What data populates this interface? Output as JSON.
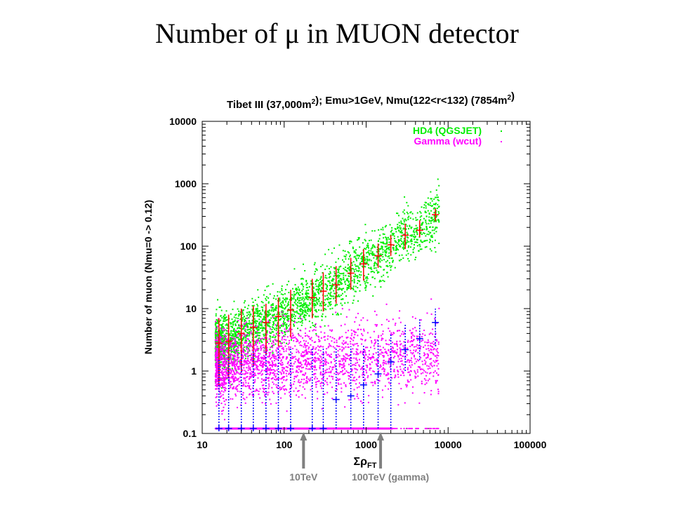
{
  "slide": {
    "title": "Number of μ in MUON detector"
  },
  "chart_data": {
    "type": "scatter",
    "title": "Tibet III (37,000m²); Emu>1GeV, Nmu(122<r<132) (7854m²)",
    "xlabel": "ΣρFT",
    "ylabel": "Number of muon (Nmu=0 -> 0.12)",
    "xscale": "log",
    "yscale": "log",
    "xlim": [
      10,
      100000
    ],
    "ylim": [
      0.1,
      10000
    ],
    "x_ticks": [
      10,
      100,
      1000,
      10000,
      100000
    ],
    "x_tick_labels": [
      "10",
      "100",
      "1000",
      "10000",
      "100000"
    ],
    "y_ticks": [
      0.1,
      1,
      10,
      100,
      1000,
      10000
    ],
    "y_tick_labels": [
      "0.1",
      "1",
      "10",
      "100",
      "1000",
      "10000"
    ],
    "legend_position": "top-right",
    "series": [
      {
        "name": "HD4 (QGSJET)",
        "color": "#00ee00",
        "marker": "dot"
      },
      {
        "name": "Gamma (wcut)",
        "color": "#ff00ff",
        "marker": "dot"
      }
    ],
    "hd4_profile": [
      {
        "x": 16,
        "y": 2.8,
        "ylo": 0.6,
        "yhi": 7
      },
      {
        "x": 21,
        "y": 3.0,
        "ylo": 0.8,
        "yhi": 8
      },
      {
        "x": 30,
        "y": 4.0,
        "ylo": 1.0,
        "yhi": 10
      },
      {
        "x": 42,
        "y": 5.0,
        "ylo": 1.2,
        "yhi": 11
      },
      {
        "x": 60,
        "y": 6.0,
        "ylo": 1.8,
        "yhi": 12
      },
      {
        "x": 85,
        "y": 7.5,
        "ylo": 2.5,
        "yhi": 15
      },
      {
        "x": 120,
        "y": 9.5,
        "ylo": 3.5,
        "yhi": 20
      },
      {
        "x": 220,
        "y": 15,
        "ylo": 7,
        "yhi": 30
      },
      {
        "x": 300,
        "y": 19,
        "ylo": 9,
        "yhi": 38
      },
      {
        "x": 430,
        "y": 24,
        "ylo": 12,
        "yhi": 48
      },
      {
        "x": 650,
        "y": 37,
        "ylo": 20,
        "yhi": 65
      },
      {
        "x": 930,
        "y": 52,
        "ylo": 28,
        "yhi": 90
      },
      {
        "x": 1400,
        "y": 70,
        "ylo": 45,
        "yhi": 110
      },
      {
        "x": 2000,
        "y": 105,
        "ylo": 70,
        "yhi": 150
      },
      {
        "x": 3000,
        "y": 150,
        "ylo": 90,
        "yhi": 230
      },
      {
        "x": 4500,
        "y": 180,
        "ylo": 140,
        "yhi": 260
      },
      {
        "x": 7000,
        "y": 320,
        "ylo": 250,
        "yhi": 400
      }
    ],
    "gamma_profile": [
      {
        "x": 16,
        "y": 0.12,
        "ylo": 0.12,
        "yhi": 1.6
      },
      {
        "x": 21,
        "y": 0.12,
        "ylo": 0.12,
        "yhi": 1.8
      },
      {
        "x": 30,
        "y": 0.12,
        "ylo": 0.12,
        "yhi": 2.0
      },
      {
        "x": 42,
        "y": 0.12,
        "ylo": 0.12,
        "yhi": 2.2
      },
      {
        "x": 60,
        "y": 0.12,
        "ylo": 0.12,
        "yhi": 2.2
      },
      {
        "x": 85,
        "y": 0.12,
        "ylo": 0.12,
        "yhi": 2.3
      },
      {
        "x": 120,
        "y": 0.12,
        "ylo": 0.12,
        "yhi": 2.3
      },
      {
        "x": 220,
        "y": 0.12,
        "ylo": 0.12,
        "yhi": 2.3
      },
      {
        "x": 300,
        "y": 0.12,
        "ylo": 0.12,
        "yhi": 2.4
      },
      {
        "x": 430,
        "y": 0.35,
        "ylo": 0.12,
        "yhi": 2.3
      },
      {
        "x": 650,
        "y": 0.4,
        "ylo": 0.12,
        "yhi": 2.5
      },
      {
        "x": 930,
        "y": 0.6,
        "ylo": 0.12,
        "yhi": 2.6
      },
      {
        "x": 1400,
        "y": 0.9,
        "ylo": 0.12,
        "yhi": 3.2
      },
      {
        "x": 2000,
        "y": 1.4,
        "ylo": 0.12,
        "yhi": 4.0
      },
      {
        "x": 3000,
        "y": 2.2,
        "ylo": 1.0,
        "yhi": 5.5
      },
      {
        "x": 4500,
        "y": 3.3,
        "ylo": 1.5,
        "yhi": 7
      },
      {
        "x": 7000,
        "y": 6.0,
        "ylo": 2.5,
        "yhi": 10
      }
    ],
    "annotations": [
      {
        "label": "10TeV",
        "x": 150
      },
      {
        "label": "100TeV (gamma)",
        "x": 1500
      }
    ]
  }
}
